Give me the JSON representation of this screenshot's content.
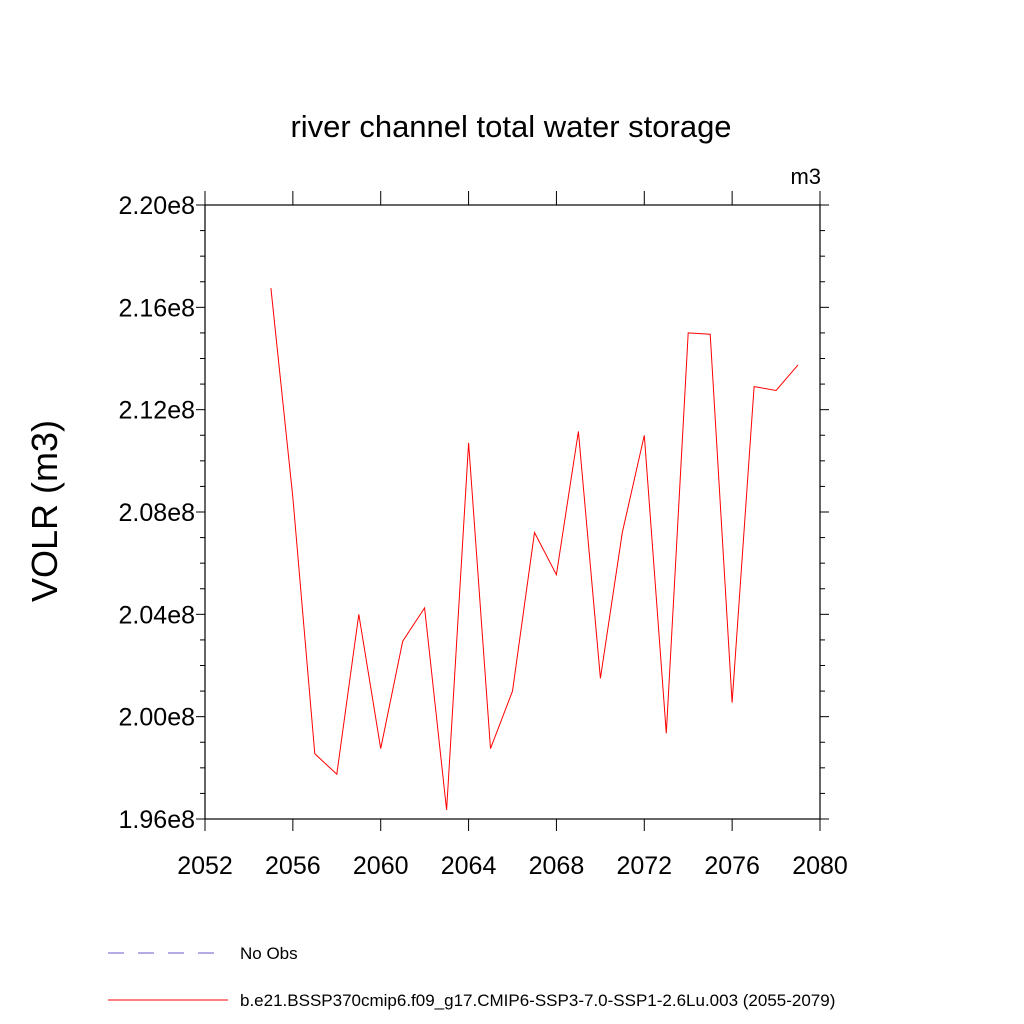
{
  "chart_data": {
    "type": "line",
    "title": "river channel total water storage",
    "units_label": "m3",
    "ylabel": "VOLR  (m3)",
    "xlabel": "",
    "xlim": [
      2052,
      2080
    ],
    "ylim": [
      196000000.0,
      220000000.0
    ],
    "x_ticks": [
      2052,
      2056,
      2060,
      2064,
      2068,
      2072,
      2076,
      2080
    ],
    "y_ticks": [
      196000000.0,
      200000000.0,
      204000000.0,
      208000000.0,
      212000000.0,
      216000000.0,
      220000000.0
    ],
    "y_tick_labels": [
      "1.96e8",
      "2.00e8",
      "2.04e8",
      "2.08e8",
      "2.12e8",
      "2.16e8",
      "2.20e8"
    ],
    "series": [
      {
        "name": "b.e21.BSSP370cmip6.f09_g17.CMIP6-SSP3-7.0-SSP1-2.6Lu.003 (2055-2079)",
        "color": "#ff0000",
        "style": "solid",
        "x": [
          2055,
          2056,
          2057,
          2058,
          2059,
          2060,
          2061,
          2062,
          2063,
          2064,
          2065,
          2066,
          2067,
          2068,
          2069,
          2070,
          2071,
          2072,
          2073,
          2074,
          2075,
          2076,
          2077,
          2078,
          2079
        ],
        "y": [
          216750000.0,
          208550000.0,
          198550000.0,
          197750000.0,
          204000000.0,
          198750000.0,
          202950000.0,
          204250000.0,
          196350000.0,
          210700000.0,
          198750000.0,
          201000000.0,
          207200000.0,
          205550000.0,
          211150000.0,
          201500000.0,
          207200000.0,
          211000000.0,
          199350000.0,
          215000000.0,
          214950000.0,
          200550000.0,
          212900000.0,
          212750000.0,
          213750000.0
        ]
      }
    ],
    "legend": [
      {
        "label": "No Obs",
        "color": "#6a5acd",
        "style": "dashed"
      },
      {
        "label": "b.e21.BSSP370cmip6.f09_g17.CMIP6-SSP3-7.0-SSP1-2.6Lu.003 (2055-2079)",
        "color": "#ff0000",
        "style": "solid"
      }
    ],
    "legend_position": "bottom-left"
  }
}
